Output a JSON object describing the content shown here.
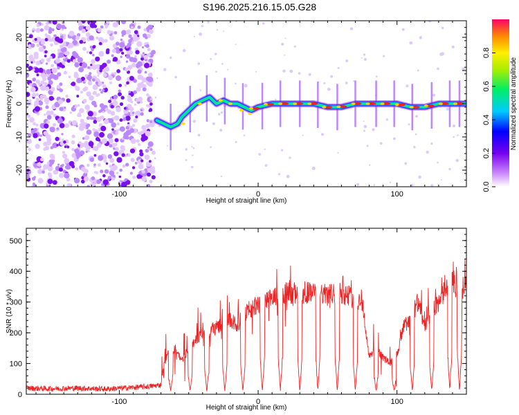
{
  "title": "S196.2025.216.15.05.G28",
  "chart_data": [
    {
      "type": "heatmap",
      "xlabel": "Height of straight line (km)",
      "ylabel": "Frequency (Hz)",
      "xlim": [
        -167,
        150
      ],
      "ylim": [
        -25,
        25
      ],
      "xticks": [
        -100,
        0,
        100
      ],
      "yticks": [
        -20,
        -10,
        0,
        10,
        20
      ],
      "colorbar": {
        "label": "Normalized spectral amplitude",
        "range": [
          0,
          1
        ],
        "ticks": [
          "0.0",
          "0.2",
          "0.4",
          "0.6",
          "0.8"
        ]
      },
      "ridge": [
        [
          -73,
          -5
        ],
        [
          -68,
          -6
        ],
        [
          -63,
          -7
        ],
        [
          -58,
          -6
        ],
        [
          -55,
          -4
        ],
        [
          -50,
          -2
        ],
        [
          -45,
          0
        ],
        [
          -40,
          1
        ],
        [
          -35,
          2
        ],
        [
          -30,
          0
        ],
        [
          -25,
          1
        ],
        [
          -20,
          0
        ],
        [
          -15,
          0
        ],
        [
          -10,
          -1
        ],
        [
          -5,
          -2
        ],
        [
          0,
          -1
        ],
        [
          10,
          0
        ],
        [
          20,
          0
        ],
        [
          30,
          0
        ],
        [
          40,
          0
        ],
        [
          50,
          -1
        ],
        [
          60,
          -1
        ],
        [
          70,
          0
        ],
        [
          80,
          0
        ],
        [
          90,
          0
        ],
        [
          100,
          0
        ],
        [
          110,
          -1
        ],
        [
          120,
          -1
        ],
        [
          130,
          0
        ],
        [
          140,
          0
        ],
        [
          150,
          0
        ]
      ]
    },
    {
      "type": "line",
      "xlabel": "Height of straight line (km)",
      "ylabel": "SNR (10 * v/v)",
      "xlim": [
        -167,
        150
      ],
      "ylim": [
        0,
        540
      ],
      "xticks": [
        -100,
        0,
        100
      ],
      "yticks": [
        0,
        100,
        200,
        300,
        400,
        500
      ],
      "series": [
        {
          "color": "#ee2222",
          "x": [
            -167,
            -150,
            -130,
            -110,
            -90,
            -80,
            -70,
            -68,
            -65,
            -60,
            -55,
            -50,
            -45,
            -40,
            -35,
            -30,
            -25,
            -20,
            -15,
            -10,
            -5,
            0,
            5,
            10,
            15,
            20,
            25,
            30,
            35,
            40,
            45,
            50,
            55,
            60,
            65,
            70,
            75,
            80,
            85,
            90,
            95,
            100,
            105,
            110,
            115,
            120,
            125,
            130,
            135,
            140,
            145,
            150
          ],
          "values": [
            20,
            18,
            20,
            17,
            22,
            25,
            30,
            90,
            130,
            150,
            110,
            150,
            180,
            200,
            210,
            220,
            230,
            240,
            225,
            260,
            280,
            290,
            300,
            310,
            330,
            330,
            330,
            310,
            330,
            330,
            330,
            320,
            330,
            330,
            320,
            310,
            300,
            120,
            150,
            120,
            100,
            130,
            220,
            250,
            300,
            220,
            270,
            300,
            340,
            360,
            340,
            350
          ]
        }
      ],
      "dropouts": [
        -63,
        -49,
        -37,
        -24,
        -11,
        3,
        16,
        30,
        43,
        57,
        70,
        85,
        98,
        111,
        125,
        138,
        145
      ]
    }
  ]
}
